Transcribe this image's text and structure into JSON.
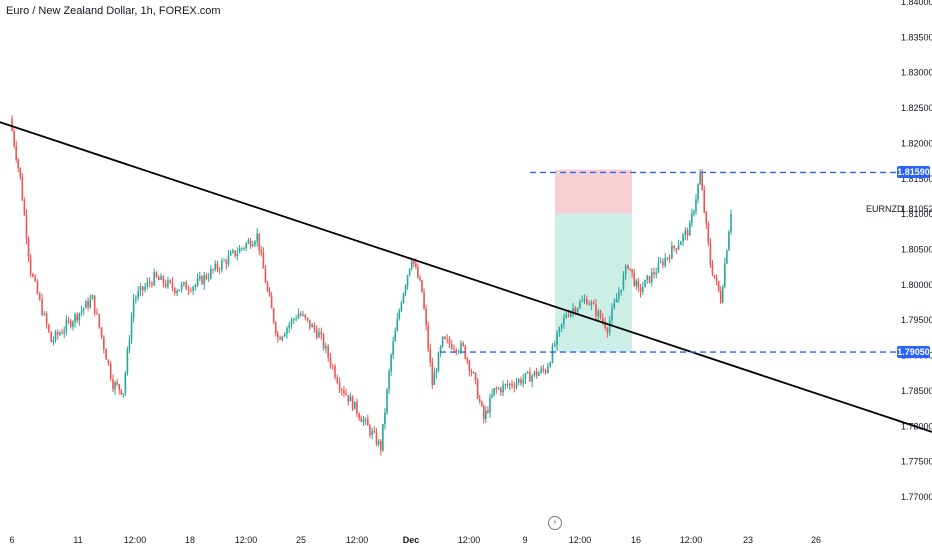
{
  "title": "Euro / New Zealand Dollar, 1h, FOREX.com",
  "symbol": "EURNZD",
  "current_price": "1.81052",
  "stop_level": "1.81590",
  "target_level": "1.79050",
  "colors": {
    "up": "#26a69a",
    "down": "#ef5350",
    "tag": "#2962ff",
    "stop_zone": "#f8d0d4",
    "target_zone": "#cdeee6"
  },
  "chart_data": {
    "type": "candlestick",
    "title": "Euro / New Zealand Dollar, 1h, FOREX.com",
    "ylim": [
      1.77,
      1.84
    ],
    "y_ticks": [
      "1.77000",
      "1.77500",
      "1.78000",
      "1.78500",
      "1.79000",
      "1.79500",
      "1.80000",
      "1.80500",
      "1.81000",
      "1.81500",
      "1.82000",
      "1.82500",
      "1.83000",
      "1.83500",
      "1.84000"
    ],
    "x_ticks": [
      "6",
      "11",
      "12:00",
      "18",
      "12:00",
      "25",
      "12:00",
      "Dec",
      "12:00",
      "9",
      "12:00",
      "16",
      "12:00",
      "23",
      "26"
    ],
    "price_path": [
      {
        "date": "Nov 6",
        "price": 1.8235
      },
      {
        "date": "Nov 6",
        "price": 1.815
      },
      {
        "date": "Nov 7",
        "price": 1.802
      },
      {
        "date": "Nov 8",
        "price": 1.792
      },
      {
        "date": "Nov 10",
        "price": 1.798
      },
      {
        "date": "Nov 11",
        "price": 1.786
      },
      {
        "date": "Nov 11",
        "price": 1.785
      },
      {
        "date": "Nov 12",
        "price": 1.798
      },
      {
        "date": "Nov 13",
        "price": 1.801
      },
      {
        "date": "Nov 14",
        "price": 1.7995
      },
      {
        "date": "Nov 15",
        "price": 1.8
      },
      {
        "date": "Nov 18",
        "price": 1.807
      },
      {
        "date": "Nov 18",
        "price": 1.799
      },
      {
        "date": "Nov 19",
        "price": 1.7925
      },
      {
        "date": "Nov 20",
        "price": 1.796
      },
      {
        "date": "Nov 21",
        "price": 1.793
      },
      {
        "date": "Nov 22",
        "price": 1.786
      },
      {
        "date": "Nov 24",
        "price": 1.777
      },
      {
        "date": "Nov 24",
        "price": 1.79
      },
      {
        "date": "Nov 25",
        "price": 1.798
      },
      {
        "date": "Nov 25",
        "price": 1.804
      },
      {
        "date": "Nov 26",
        "price": 1.799
      },
      {
        "date": "Nov 26",
        "price": 1.786
      },
      {
        "date": "Nov 27",
        "price": 1.792
      },
      {
        "date": "Nov 28",
        "price": 1.791
      },
      {
        "date": "Nov 28",
        "price": 1.787
      },
      {
        "date": "Nov 29",
        "price": 1.781
      },
      {
        "date": "Nov 29",
        "price": 1.785
      },
      {
        "date": "Dec 2",
        "price": 1.788
      },
      {
        "date": "Dec 3",
        "price": 1.796
      },
      {
        "date": "Dec 4",
        "price": 1.798
      },
      {
        "date": "Dec 5",
        "price": 1.794
      },
      {
        "date": "Dec 6",
        "price": 1.803
      },
      {
        "date": "Dec 6",
        "price": 1.799
      },
      {
        "date": "Dec 9",
        "price": 1.808
      },
      {
        "date": "Dec 9",
        "price": 1.8155
      },
      {
        "date": "Dec 10",
        "price": 1.803
      },
      {
        "date": "Dec 10",
        "price": 1.798
      },
      {
        "date": "Dec 11",
        "price": 1.8105
      }
    ],
    "trendline": {
      "start": {
        "date": "Nov 5",
        "price": 1.8235
      },
      "end": {
        "date": "Dec 22",
        "price": 1.778
      }
    },
    "position": {
      "type": "short",
      "entry": 1.8105,
      "stop": 1.8159,
      "target": 1.7905
    }
  }
}
